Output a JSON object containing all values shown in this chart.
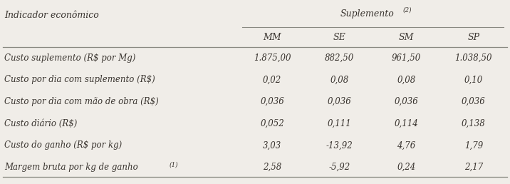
{
  "header_col": "Indicador econômico",
  "suplemento_label": "Suplemento",
  "suplemento_super": "(2)",
  "columns": [
    "MM",
    "SE",
    "SM",
    "SP"
  ],
  "rows": [
    [
      "Custo suplemento (R$ por Mg)",
      "1.875,00",
      "882,50",
      "961,50",
      "1.038,50"
    ],
    [
      "Custo por dia com suplemento (R$)",
      "0,02",
      "0,08",
      "0,08",
      "0,10"
    ],
    [
      "Custo por dia com mão de obra (R$)",
      "0,036",
      "0,036",
      "0,036",
      "0,036"
    ],
    [
      "Custo diário (R$)",
      "0,052",
      "0,111",
      "0,114",
      "0,138"
    ],
    [
      "Custo do ganho (R$ por kg)",
      "3,03",
      "-13,92",
      "4,76",
      "1,79"
    ],
    [
      "Margem bruta por kg de ganho",
      "2,58",
      "-5,92",
      "0,24",
      "2,17"
    ]
  ],
  "last_row_super": "(1)",
  "bg_color": "#f0ede8",
  "text_color": "#3a3530",
  "line_color": "#888880",
  "font_size": 8.5
}
